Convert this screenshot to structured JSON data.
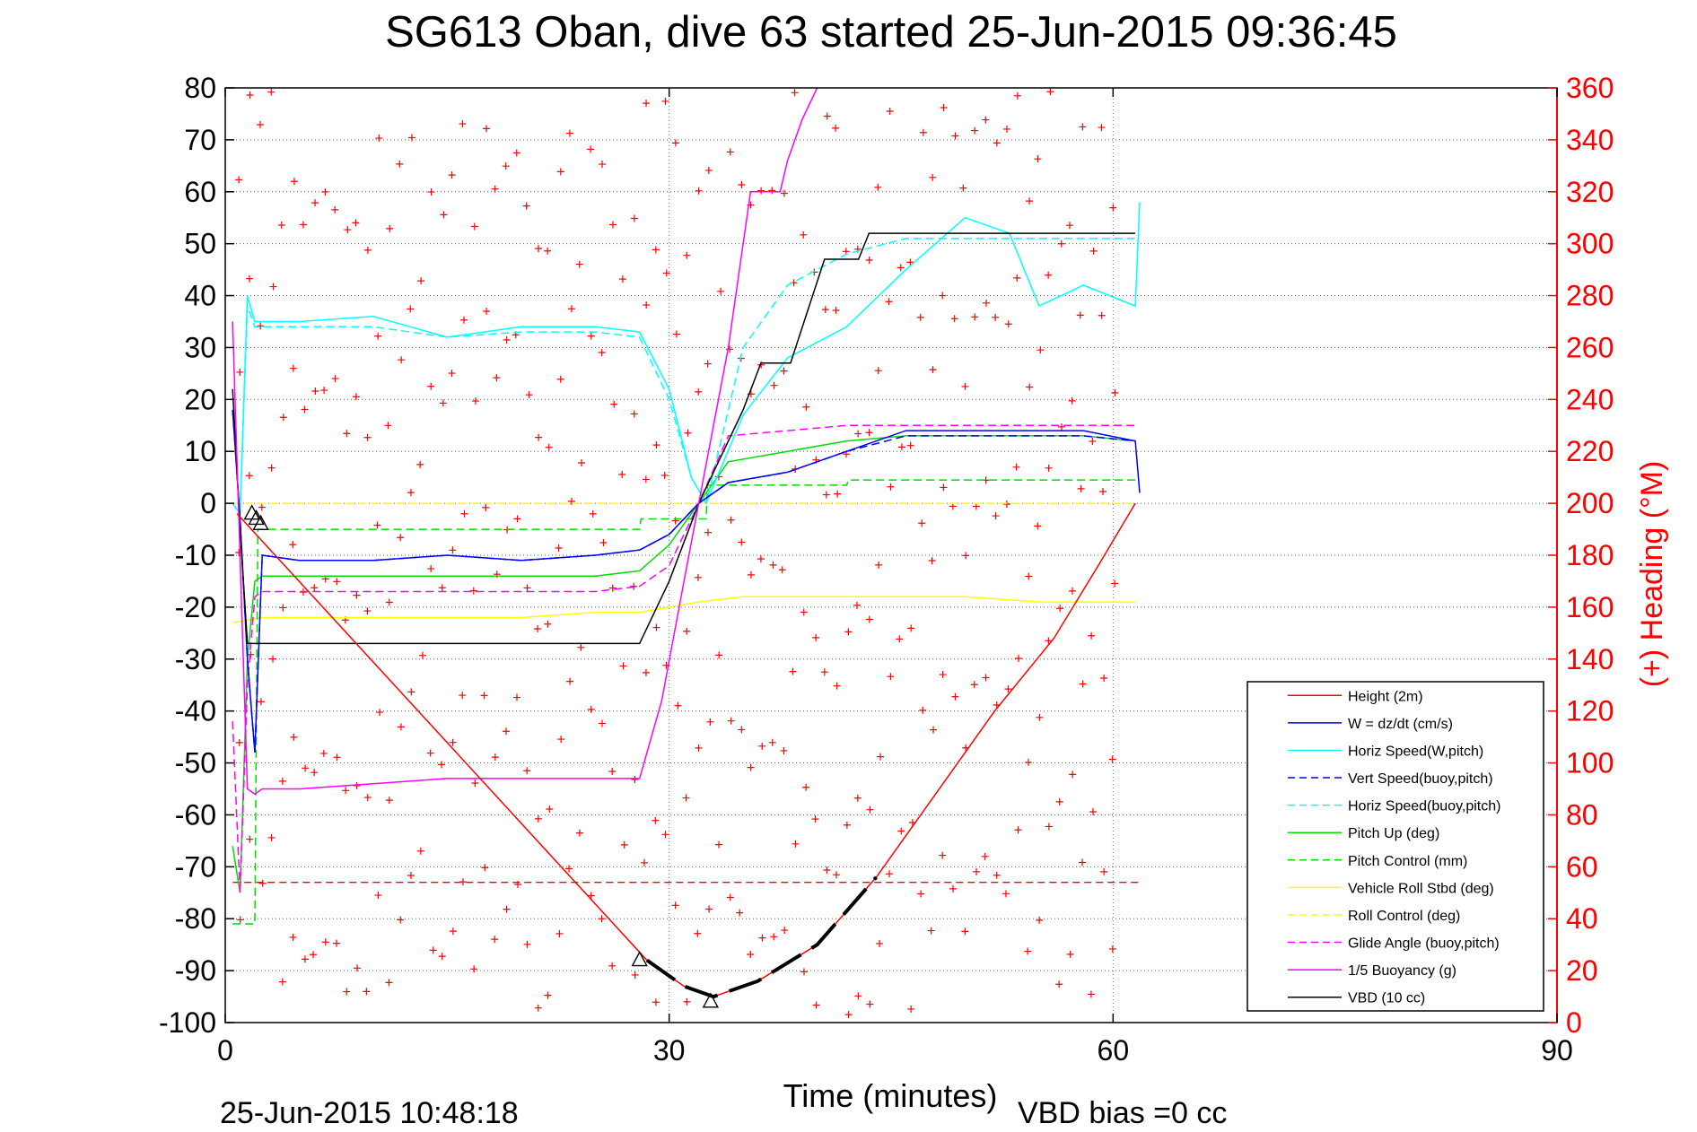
{
  "title": "SG613 Oban, dive 63 started 25-Jun-2015 09:36:45",
  "footer": {
    "timestamp": "25-Jun-2015 10:48:18",
    "vbd_bias": "VBD bias =0 cc"
  },
  "colors": {
    "red": "#ff0000",
    "blue": "#0000ff",
    "cyan": "#00ffff",
    "green": "#00dd00",
    "yellow": "#ffff00",
    "magenta": "#ff00ff",
    "black": "#000000"
  },
  "chart_data": {
    "type": "line",
    "title": "SG613 Oban, dive 63 started 25-Jun-2015 09:36:45",
    "xlabel": "Time (minutes)",
    "ylabel": "",
    "y2label": "(+) Heading (°M)",
    "xlim": [
      0,
      90
    ],
    "ylim": [
      -100,
      80
    ],
    "y2lim": [
      0,
      360
    ],
    "xticks": [
      0,
      30,
      60,
      90
    ],
    "yticks": [
      -100,
      -90,
      -80,
      -70,
      -60,
      -50,
      -40,
      -30,
      -20,
      -10,
      0,
      10,
      20,
      30,
      40,
      50,
      60,
      70,
      80
    ],
    "y2ticks": [
      0,
      20,
      40,
      60,
      80,
      100,
      120,
      140,
      160,
      180,
      200,
      220,
      240,
      260,
      280,
      300,
      320,
      340,
      360
    ],
    "grid": true,
    "legend_position": "bottom-right",
    "series": [
      {
        "name": "Height (2m)",
        "color": "#ff0000",
        "dash": "solid",
        "x": [
          0.8,
          28.5,
          31.0,
          33.0,
          36.0,
          40.0,
          44.0,
          48.0,
          52.0,
          56.0,
          59.0,
          61.5
        ],
        "y": [
          -2,
          -88,
          -93,
          -95,
          -92,
          -85,
          -72,
          -56,
          -40,
          -26,
          -12,
          0
        ]
      },
      {
        "name": "W = dz/dt (cm/s)",
        "color": "#0000ff",
        "dash": "solid",
        "x": [
          0.5,
          1.0,
          1.5,
          2.0,
          2.5,
          5,
          10,
          15,
          20,
          25,
          28,
          30,
          32,
          34,
          38,
          42,
          46,
          50,
          54,
          58,
          61.5,
          61.8
        ],
        "y": [
          18,
          -3,
          -30,
          -48,
          -10,
          -11,
          -11,
          -10,
          -11,
          -10,
          -9,
          -6,
          0,
          4,
          6,
          10,
          14,
          14,
          14,
          14,
          12,
          2
        ]
      },
      {
        "name": "Horiz Speed(W,pitch)",
        "color": "#00ffff",
        "dash": "solid",
        "x": [
          0.5,
          1.0,
          1.5,
          2.0,
          2.5,
          5,
          10,
          15,
          20,
          25,
          28,
          30,
          31.5,
          32.5,
          35,
          38,
          42,
          46,
          50,
          53,
          55,
          58,
          61.5,
          61.8
        ],
        "y": [
          0,
          -2,
          40,
          35,
          35,
          35,
          36,
          32,
          34,
          34,
          33,
          22,
          5,
          0,
          17,
          28,
          34,
          45,
          55,
          52,
          38,
          42,
          38,
          58
        ]
      },
      {
        "name": "Vert Speed(buoy,pitch)",
        "color": "#0000ff",
        "dash": "dashed",
        "x": [
          0.5,
          1.0,
          1.5,
          2.0,
          2.5,
          5,
          10,
          15,
          20,
          25,
          28,
          30,
          32,
          34,
          38,
          42,
          46,
          50,
          54,
          58,
          61.5
        ],
        "y": [
          18,
          -3,
          -30,
          -48,
          -10,
          -11,
          -11,
          -10,
          -11,
          -10,
          -9,
          -6,
          0,
          4,
          6,
          10,
          13,
          13,
          13,
          13,
          12
        ]
      },
      {
        "name": "Horiz Speed(buoy,pitch)",
        "color": "#00ffff",
        "dash": "dashed",
        "x": [
          0.5,
          1.0,
          1.5,
          2.0,
          2.5,
          5,
          10,
          15,
          20,
          25,
          28,
          30,
          31.5,
          32.5,
          35,
          38,
          42,
          46,
          50,
          55,
          58,
          61.5
        ],
        "y": [
          0,
          -2,
          38,
          34,
          34,
          34,
          34,
          32,
          33,
          33,
          32,
          20,
          5,
          0,
          30,
          42,
          48,
          51,
          51,
          51,
          51,
          51
        ]
      },
      {
        "name": "Pitch Up (deg)",
        "color": "#00dd00",
        "dash": "solid",
        "x": [
          0.5,
          1.0,
          1.5,
          2.0,
          2.5,
          5,
          10,
          15,
          20,
          25,
          28,
          30,
          32,
          34,
          38,
          42,
          46,
          50,
          54,
          58,
          61.5
        ],
        "y": [
          -66,
          -75,
          -30,
          -15,
          -14,
          -14,
          -14,
          -14,
          -14,
          -14,
          -13,
          -8,
          0,
          8,
          10,
          12,
          13,
          13,
          13,
          13,
          12
        ]
      },
      {
        "name": "Pitch Control (mm)",
        "color": "#00dd00",
        "dash": "dashed",
        "x": [
          0.5,
          1.5,
          2.0,
          2.2,
          2.3,
          28.0,
          28.1,
          32.5,
          32.6,
          42.0,
          42.1,
          61.5
        ],
        "y": [
          -81,
          -81,
          -81,
          -5,
          -5,
          -5,
          -3,
          -3,
          3.5,
          3.5,
          4.5,
          4.5
        ]
      },
      {
        "name": "Vehicle Roll Stbd (deg)",
        "color": "#ffff00",
        "dash": "solid",
        "x": [
          0.5,
          2.5,
          5,
          10,
          15,
          20,
          25,
          28,
          30,
          32,
          35,
          40,
          45,
          50,
          55,
          60,
          61.5
        ],
        "y": [
          -23,
          -22,
          -22,
          -22,
          -22,
          -22,
          -21,
          -21,
          -20,
          -19,
          -18,
          -18,
          -18,
          -18,
          -19,
          -19,
          -19
        ]
      },
      {
        "name": "Roll Control (deg)",
        "color": "#ffff00",
        "dash": "dashed",
        "x": [
          0.5,
          61.5
        ],
        "y": [
          0,
          0
        ]
      },
      {
        "name": "Glide Angle (buoy,pitch)",
        "color": "#ff00ff",
        "dash": "dashed",
        "x": [
          0.5,
          1.0,
          1.5,
          2.0,
          2.5,
          5,
          10,
          15,
          20,
          25,
          28,
          30,
          32,
          34,
          38,
          42,
          46,
          50,
          54,
          58,
          61.5
        ],
        "y": [
          -42,
          -75,
          -35,
          -18,
          -17,
          -17,
          -17,
          -17,
          -17,
          -17,
          -16,
          -12,
          0,
          13,
          14,
          15,
          15,
          15,
          15,
          15,
          15
        ]
      },
      {
        "name": "1/5 Buoyancy (g)",
        "color": "#ff00ff",
        "dash": "solid",
        "x": [
          0.5,
          1.5,
          2.0,
          2.5,
          5,
          10,
          15,
          20,
          25,
          28.0,
          29.5,
          31,
          32,
          34,
          35,
          35.5,
          37.5,
          38,
          39,
          40
        ],
        "y": [
          35,
          -55,
          -56,
          -55,
          -55,
          -54,
          -53,
          -53,
          -53,
          -53,
          -38,
          -15,
          0,
          30,
          50,
          60,
          60,
          66,
          74,
          80
        ]
      },
      {
        "name": "VBD (10 cc)",
        "color": "#000000",
        "dash": "solid",
        "x": [
          0.5,
          1.0,
          1.5,
          2.0,
          2.5,
          5,
          10,
          15,
          20,
          25,
          28.0,
          30,
          32,
          35,
          36.2,
          38.2,
          40.5,
          42.8,
          43.5,
          61.5
        ],
        "y": [
          22,
          -5,
          -27,
          -27,
          -27,
          -27,
          -27,
          -27,
          -27,
          -27,
          -27,
          -15,
          0,
          18,
          27,
          27,
          47,
          47,
          52,
          52
        ]
      }
    ],
    "heading_points": {
      "name": "(+) Heading (°M)",
      "color": "#ff0000",
      "ylabel": "(+) Heading (°M)"
    },
    "reference_line": {
      "color": "#ff0000",
      "dash": "dashed",
      "y": -73,
      "x": [
        0.5,
        62
      ]
    },
    "markers": {
      "shape": "triangle",
      "color": "#000000",
      "points": [
        [
          1.8,
          -2
        ],
        [
          2.1,
          -3
        ],
        [
          2.4,
          -4
        ],
        [
          28.0,
          -88
        ],
        [
          32.8,
          -96
        ]
      ]
    }
  }
}
